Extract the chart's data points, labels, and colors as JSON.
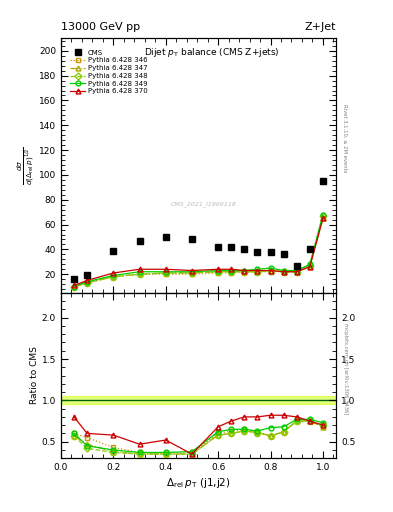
{
  "title_top": "13000 GeV pp",
  "title_right": "Z+Jet",
  "plot_title": "Dijet $p_{T}$ balance (CMS Z+jets)",
  "xlabel": "$\\Delta_{\\rm rel}\\,p_{\\rm T}$ (j1,j2)",
  "ylabel_ratio": "Ratio to CMS",
  "watermark": "CMS_2021_I1866118",
  "cms_y": [
    16,
    19,
    39,
    47,
    50,
    48,
    42,
    42,
    40,
    38,
    38,
    36,
    27,
    40,
    95
  ],
  "cms_x": [
    0.05,
    0.1,
    0.2,
    0.3,
    0.4,
    0.5,
    0.6,
    0.65,
    0.7,
    0.75,
    0.8,
    0.85,
    0.9,
    0.95,
    1.0
  ],
  "series": [
    {
      "label": "Pythia 6.428 346",
      "color": "#c8960a",
      "linestyle": "dotted",
      "marker": "s",
      "y_main": [
        10,
        13,
        18,
        20,
        20,
        20,
        21,
        21,
        22,
        22,
        22,
        22,
        22,
        26,
        65
      ],
      "y_ratio": [
        0.6,
        0.55,
        0.43,
        0.37,
        0.35,
        0.37,
        0.6,
        0.63,
        0.65,
        0.62,
        0.57,
        0.62,
        0.75,
        0.75,
        0.68
      ],
      "x": [
        0.05,
        0.1,
        0.2,
        0.3,
        0.4,
        0.5,
        0.6,
        0.65,
        0.7,
        0.75,
        0.8,
        0.85,
        0.9,
        0.95,
        1.0
      ]
    },
    {
      "label": "Pythia 6.428 347",
      "color": "#aaaa00",
      "linestyle": "dashdot",
      "marker": "^",
      "y_main": [
        10,
        13,
        18,
        20,
        21,
        21,
        22,
        22,
        22,
        22,
        23,
        22,
        22,
        27,
        65
      ],
      "y_ratio": [
        0.57,
        0.47,
        0.38,
        0.35,
        0.35,
        0.35,
        0.58,
        0.6,
        0.63,
        0.61,
        0.57,
        0.62,
        0.75,
        0.75,
        0.68
      ],
      "x": [
        0.05,
        0.1,
        0.2,
        0.3,
        0.4,
        0.5,
        0.6,
        0.65,
        0.7,
        0.75,
        0.8,
        0.85,
        0.9,
        0.95,
        1.0
      ]
    },
    {
      "label": "Pythia 6.428 348",
      "color": "#88cc00",
      "linestyle": "dashed",
      "marker": "D",
      "y_main": [
        10,
        13,
        18,
        20,
        21,
        21,
        22,
        22,
        22,
        22,
        23,
        22,
        22,
        27,
        67
      ],
      "y_ratio": [
        0.57,
        0.42,
        0.37,
        0.35,
        0.35,
        0.35,
        0.58,
        0.6,
        0.63,
        0.61,
        0.57,
        0.62,
        0.75,
        0.75,
        0.7
      ],
      "x": [
        0.05,
        0.1,
        0.2,
        0.3,
        0.4,
        0.5,
        0.6,
        0.65,
        0.7,
        0.75,
        0.8,
        0.85,
        0.9,
        0.95,
        1.0
      ]
    },
    {
      "label": "Pythia 6.428 349",
      "color": "#00cc00",
      "linestyle": "solid",
      "marker": "o",
      "y_main": [
        10,
        14,
        19,
        22,
        22,
        22,
        23,
        23,
        23,
        24,
        25,
        23,
        23,
        28,
        68
      ],
      "y_ratio": [
        0.6,
        0.45,
        0.4,
        0.37,
        0.37,
        0.38,
        0.62,
        0.65,
        0.65,
        0.63,
        0.67,
        0.68,
        0.77,
        0.77,
        0.73
      ],
      "x": [
        0.05,
        0.1,
        0.2,
        0.3,
        0.4,
        0.5,
        0.6,
        0.65,
        0.7,
        0.75,
        0.8,
        0.85,
        0.9,
        0.95,
        1.0
      ]
    },
    {
      "label": "Pythia 6.428 370",
      "color": "#cc0000",
      "linestyle": "solid",
      "marker": "^",
      "y_main": [
        11,
        15,
        21,
        24,
        24,
        23,
        24,
        24,
        23,
        23,
        23,
        22,
        22,
        26,
        65
      ],
      "y_ratio": [
        0.8,
        0.6,
        0.58,
        0.47,
        0.52,
        0.35,
        0.68,
        0.75,
        0.8,
        0.8,
        0.82,
        0.82,
        0.8,
        0.75,
        0.7
      ],
      "x": [
        0.05,
        0.1,
        0.2,
        0.3,
        0.4,
        0.5,
        0.6,
        0.65,
        0.7,
        0.75,
        0.8,
        0.85,
        0.9,
        0.95,
        1.0
      ]
    }
  ],
  "ylim_main": [
    5,
    210
  ],
  "ylim_ratio": [
    0.3,
    2.3
  ],
  "yticks_main": [
    20,
    40,
    60,
    80,
    100,
    120,
    140,
    160,
    180,
    200
  ],
  "yticks_ratio": [
    0.5,
    1.0,
    1.5,
    2.0
  ],
  "xlim": [
    0.0,
    1.05
  ],
  "ratio_band_color": "#ccff00",
  "ratio_band_alpha": 0.5,
  "rivet_label": "Rivet 3.1.10, ≥ 2M events",
  "mcplots_label": "mcplots.cern.ch [arXiv:1306.3436]"
}
